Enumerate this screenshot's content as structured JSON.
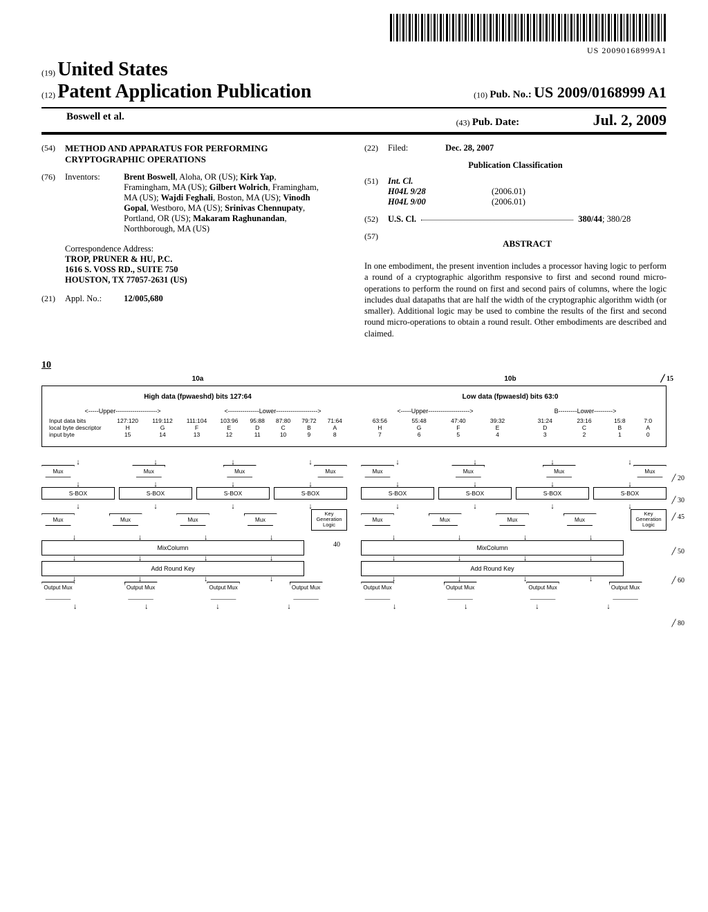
{
  "barcode_text": "US 20090168999A1",
  "header": {
    "num19": "(19)",
    "country": "United States",
    "num12": "(12)",
    "doc_type": "Patent Application Publication",
    "num10": "(10)",
    "pub_no_label": "Pub. No.:",
    "pub_no": "US 2009/0168999 A1",
    "author": "Boswell et al.",
    "num43": "(43)",
    "pub_date_label": "Pub. Date:",
    "pub_date": "Jul. 2, 2009"
  },
  "title": {
    "num": "(54)",
    "text": "METHOD AND APPARATUS FOR PERFORMING CRYPTOGRAPHIC OPERATIONS"
  },
  "inventors": {
    "num": "(76)",
    "label": "Inventors:",
    "list": [
      {
        "name": "Brent Boswell",
        "loc": ", Aloha, OR (US); "
      },
      {
        "name": "Kirk Yap",
        "loc": ", Framingham, MA (US); "
      },
      {
        "name": "Gilbert Wolrich",
        "loc": ", Framingham, MA (US); "
      },
      {
        "name": "Wajdi Feghali",
        "loc": ", Boston, MA (US); "
      },
      {
        "name": "Vinodh Gopal",
        "loc": ", Westboro, MA (US); "
      },
      {
        "name": "Srinivas Chennupaty",
        "loc": ", Portland, OR (US); "
      },
      {
        "name": "Makaram Raghunandan",
        "loc": ", Northborough, MA (US)"
      }
    ]
  },
  "correspondence": {
    "label": "Correspondence Address:",
    "lines": [
      "TROP, PRUNER & HU, P.C.",
      "1616 S. VOSS RD., SUITE 750",
      "HOUSTON, TX 77057-2631 (US)"
    ]
  },
  "appl": {
    "num": "(21)",
    "label": "Appl. No.:",
    "value": "12/005,680"
  },
  "filed": {
    "num": "(22)",
    "label": "Filed:",
    "value": "Dec. 28, 2007"
  },
  "classification": {
    "heading": "Publication Classification",
    "intcl": {
      "num": "(51)",
      "label": "Int. Cl.",
      "rows": [
        {
          "code": "H04L 9/28",
          "year": "(2006.01)"
        },
        {
          "code": "H04L 9/00",
          "year": "(2006.01)"
        }
      ]
    },
    "uscl": {
      "num": "(52)",
      "label": "U.S. Cl.",
      "value": "380/44",
      "extra": "; 380/28"
    }
  },
  "abstract": {
    "num": "(57)",
    "heading": "ABSTRACT",
    "body": "In one embodiment, the present invention includes a processor having logic to perform a round of a cryptographic algorithm responsive to first and second round micro-operations to perform the round on first and second pairs of columns, where the logic includes dual datapaths that are half the width of the cryptographic algorithm width (or smaller). Additional logic may be used to combine the results of the first and second round micro-operations to obtain a round result. Other embodiments are described and claimed."
  },
  "figure": {
    "ref": "10",
    "refs": {
      "a": "10a",
      "b": "10b",
      "r15": "15",
      "r20": "20",
      "r30": "30",
      "r40": "40",
      "r45": "45",
      "r50": "50",
      "r60": "60",
      "r80": "80"
    },
    "high_label": "High data (fpwaeshd) bits 127:64",
    "low_label": "Low data (fpwaesld) bits 63:0",
    "upper": "<-----Upper-------------------->",
    "lower": "<---------------Lower-------------------->",
    "lower2": "B---------Lower--------->",
    "row_labels": [
      "Input data bits",
      "local byte descriptor",
      "input byte"
    ],
    "high_bits": [
      "127:120",
      "119:112",
      "111:104",
      "103:96",
      "95:88",
      "87:80",
      "79:72",
      "71:64"
    ],
    "high_desc": [
      "H",
      "G",
      "F",
      "E",
      "D",
      "C",
      "B",
      "A"
    ],
    "high_byte": [
      "15",
      "14",
      "13",
      "12",
      "11",
      "10",
      "9",
      "8"
    ],
    "low_bits": [
      "63:56",
      "55:48",
      "47:40",
      "39:32",
      "31:24",
      "23:16",
      "15:8",
      "7:0"
    ],
    "low_desc": [
      "H",
      "G",
      "F",
      "E",
      "D",
      "C",
      "B",
      "A"
    ],
    "low_byte": [
      "7",
      "6",
      "5",
      "4",
      "3",
      "2",
      "1",
      "0"
    ],
    "mux": "Mux",
    "sbox": "S-BOX",
    "keygen": "Key Generation Logic",
    "mixcol": "MixColumn",
    "addkey": "Add Round Key",
    "outmux": "Output Mux"
  }
}
